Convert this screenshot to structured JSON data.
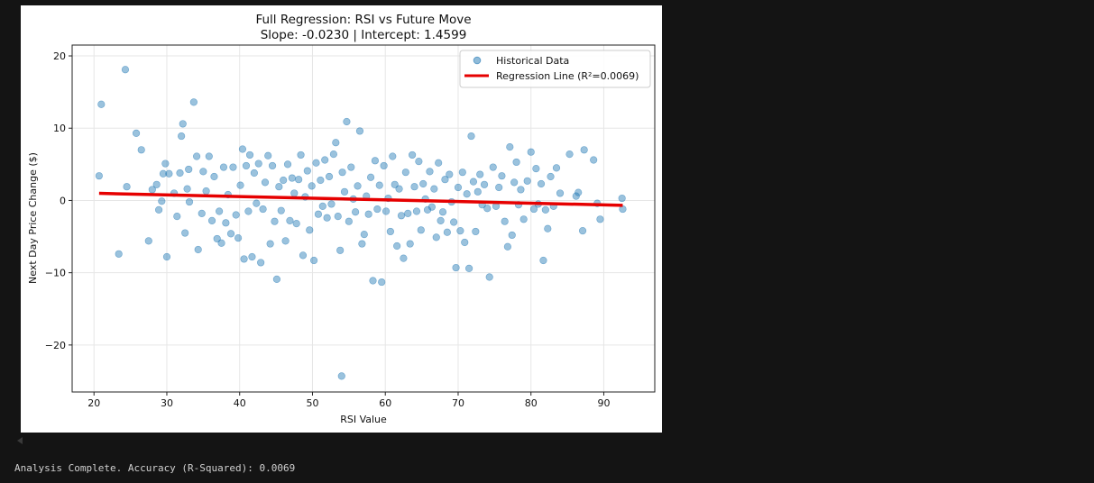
{
  "output": {
    "status_text": "Analysis Complete. Accuracy (R-Squared): 0.0069"
  },
  "chart_data": {
    "type": "scatter",
    "title": "Full Regression: RSI vs Future Move",
    "subtitle": "Slope: -0.0230 | Intercept: 1.4599",
    "xlabel": "RSI Value",
    "ylabel": "Next Day Price Change ($)",
    "xlim": [
      17,
      97
    ],
    "ylim": [
      -26.5,
      21.5
    ],
    "xticks": [
      20,
      30,
      40,
      50,
      60,
      70,
      80,
      90
    ],
    "yticks": [
      -20,
      -10,
      0,
      10,
      20
    ],
    "ytick_labels": [
      "−20",
      "−10",
      "0",
      "10",
      "20"
    ],
    "grid": true,
    "legend_position": "top-right",
    "colors": {
      "scatter": "#1f77b4",
      "regression": "#e60000"
    },
    "series": [
      {
        "name": "Historical Data",
        "kind": "scatter",
        "points": [
          [
            20.7,
            3.4
          ],
          [
            21.0,
            13.3
          ],
          [
            23.4,
            -7.4
          ],
          [
            24.3,
            18.1
          ],
          [
            24.5,
            1.9
          ],
          [
            25.8,
            9.3
          ],
          [
            26.5,
            7.0
          ],
          [
            27.5,
            -5.6
          ],
          [
            28.0,
            1.5
          ],
          [
            28.6,
            2.2
          ],
          [
            28.9,
            -1.3
          ],
          [
            29.3,
            -0.1
          ],
          [
            29.5,
            3.7
          ],
          [
            29.8,
            5.1
          ],
          [
            30.0,
            -7.8
          ],
          [
            30.3,
            3.7
          ],
          [
            31.0,
            1.0
          ],
          [
            31.4,
            -2.2
          ],
          [
            31.8,
            3.8
          ],
          [
            32.0,
            8.9
          ],
          [
            32.2,
            10.6
          ],
          [
            32.5,
            -4.5
          ],
          [
            32.8,
            1.6
          ],
          [
            33.0,
            4.3
          ],
          [
            33.1,
            -0.2
          ],
          [
            33.7,
            13.6
          ],
          [
            34.1,
            6.1
          ],
          [
            34.3,
            -6.8
          ],
          [
            34.8,
            -1.8
          ],
          [
            35.0,
            4.0
          ],
          [
            35.4,
            1.3
          ],
          [
            35.8,
            6.1
          ],
          [
            36.2,
            -2.8
          ],
          [
            36.5,
            3.3
          ],
          [
            36.9,
            -5.3
          ],
          [
            37.2,
            -1.5
          ],
          [
            37.5,
            -5.9
          ],
          [
            37.8,
            4.6
          ],
          [
            38.1,
            -3.1
          ],
          [
            38.4,
            0.8
          ],
          [
            38.8,
            -4.6
          ],
          [
            39.1,
            4.6
          ],
          [
            39.5,
            -2.0
          ],
          [
            39.8,
            -5.2
          ],
          [
            40.1,
            2.1
          ],
          [
            40.4,
            7.1
          ],
          [
            40.6,
            -8.1
          ],
          [
            40.9,
            4.8
          ],
          [
            41.2,
            -1.5
          ],
          [
            41.4,
            6.3
          ],
          [
            41.7,
            -7.8
          ],
          [
            42.0,
            3.8
          ],
          [
            42.3,
            -0.4
          ],
          [
            42.6,
            5.1
          ],
          [
            42.9,
            -8.6
          ],
          [
            43.2,
            -1.2
          ],
          [
            43.5,
            2.5
          ],
          [
            43.9,
            6.2
          ],
          [
            44.2,
            -6.0
          ],
          [
            44.5,
            4.8
          ],
          [
            44.8,
            -2.9
          ],
          [
            45.1,
            -10.9
          ],
          [
            45.4,
            1.9
          ],
          [
            45.7,
            -1.4
          ],
          [
            46.0,
            2.8
          ],
          [
            46.3,
            -5.6
          ],
          [
            46.6,
            5.0
          ],
          [
            46.9,
            -2.8
          ],
          [
            47.2,
            3.1
          ],
          [
            47.5,
            1.0
          ],
          [
            47.8,
            -3.2
          ],
          [
            48.1,
            2.9
          ],
          [
            48.4,
            6.3
          ],
          [
            48.7,
            -7.6
          ],
          [
            49.0,
            0.5
          ],
          [
            49.3,
            4.1
          ],
          [
            49.6,
            -4.1
          ],
          [
            49.9,
            2.0
          ],
          [
            50.2,
            -8.3
          ],
          [
            50.5,
            5.2
          ],
          [
            50.8,
            -1.9
          ],
          [
            51.1,
            2.8
          ],
          [
            51.4,
            -0.8
          ],
          [
            51.7,
            5.6
          ],
          [
            52.0,
            -2.4
          ],
          [
            52.3,
            3.3
          ],
          [
            52.6,
            -0.5
          ],
          [
            52.9,
            6.4
          ],
          [
            53.2,
            8.0
          ],
          [
            53.5,
            -2.2
          ],
          [
            53.8,
            -6.9
          ],
          [
            54.0,
            -24.3
          ],
          [
            54.1,
            3.9
          ],
          [
            54.4,
            1.2
          ],
          [
            54.7,
            10.9
          ],
          [
            55.0,
            -2.9
          ],
          [
            55.3,
            4.6
          ],
          [
            55.6,
            0.2
          ],
          [
            55.9,
            -1.6
          ],
          [
            56.2,
            2.0
          ],
          [
            56.5,
            9.6
          ],
          [
            56.8,
            -6.0
          ],
          [
            57.1,
            -4.7
          ],
          [
            57.4,
            0.6
          ],
          [
            57.7,
            -1.9
          ],
          [
            58.0,
            3.2
          ],
          [
            58.3,
            -11.1
          ],
          [
            58.6,
            5.5
          ],
          [
            58.9,
            -1.2
          ],
          [
            59.2,
            2.1
          ],
          [
            59.5,
            -11.3
          ],
          [
            59.8,
            4.8
          ],
          [
            60.1,
            -1.5
          ],
          [
            60.4,
            0.3
          ],
          [
            60.7,
            -4.3
          ],
          [
            61.0,
            6.1
          ],
          [
            61.3,
            2.2
          ],
          [
            61.6,
            -6.3
          ],
          [
            61.9,
            1.6
          ],
          [
            62.2,
            -2.1
          ],
          [
            62.5,
            -8.0
          ],
          [
            62.8,
            3.9
          ],
          [
            63.1,
            -1.8
          ],
          [
            63.4,
            -6.0
          ],
          [
            63.7,
            6.3
          ],
          [
            64.0,
            1.9
          ],
          [
            64.3,
            -1.5
          ],
          [
            64.6,
            5.4
          ],
          [
            64.9,
            -4.1
          ],
          [
            65.2,
            2.3
          ],
          [
            65.5,
            0.2
          ],
          [
            65.8,
            -1.3
          ],
          [
            66.1,
            4.0
          ],
          [
            66.4,
            -0.9
          ],
          [
            66.7,
            1.6
          ],
          [
            67.0,
            -5.1
          ],
          [
            67.3,
            5.2
          ],
          [
            67.6,
            -2.8
          ],
          [
            67.9,
            -1.6
          ],
          [
            68.2,
            2.9
          ],
          [
            68.5,
            -4.4
          ],
          [
            68.8,
            3.6
          ],
          [
            69.1,
            -0.2
          ],
          [
            69.4,
            -3.0
          ],
          [
            69.7,
            -9.3
          ],
          [
            70.0,
            1.8
          ],
          [
            70.3,
            -4.2
          ],
          [
            70.6,
            3.9
          ],
          [
            70.9,
            -5.8
          ],
          [
            71.2,
            0.9
          ],
          [
            71.5,
            -9.4
          ],
          [
            71.8,
            8.9
          ],
          [
            72.1,
            2.6
          ],
          [
            72.4,
            -4.3
          ],
          [
            72.7,
            1.2
          ],
          [
            73.0,
            3.6
          ],
          [
            73.3,
            -0.6
          ],
          [
            73.6,
            2.2
          ],
          [
            74.0,
            -1.1
          ],
          [
            74.3,
            -10.6
          ],
          [
            74.8,
            4.6
          ],
          [
            75.2,
            -0.8
          ],
          [
            75.6,
            1.8
          ],
          [
            76.0,
            3.4
          ],
          [
            76.4,
            -2.9
          ],
          [
            76.8,
            -6.4
          ],
          [
            77.1,
            7.4
          ],
          [
            77.4,
            -4.8
          ],
          [
            77.7,
            2.5
          ],
          [
            78.0,
            5.3
          ],
          [
            78.3,
            -0.6
          ],
          [
            78.6,
            1.5
          ],
          [
            79.0,
            -2.6
          ],
          [
            79.5,
            2.7
          ],
          [
            80.0,
            6.7
          ],
          [
            80.4,
            -1.2
          ],
          [
            80.7,
            4.4
          ],
          [
            81.0,
            -0.5
          ],
          [
            81.4,
            2.3
          ],
          [
            81.7,
            -8.3
          ],
          [
            82.0,
            -1.3
          ],
          [
            82.3,
            -3.9
          ],
          [
            82.7,
            3.3
          ],
          [
            83.1,
            -0.8
          ],
          [
            83.5,
            4.5
          ],
          [
            84.0,
            1.0
          ],
          [
            85.3,
            6.4
          ],
          [
            86.2,
            0.6
          ],
          [
            86.5,
            1.1
          ],
          [
            87.1,
            -4.2
          ],
          [
            87.3,
            7.0
          ],
          [
            88.6,
            5.6
          ],
          [
            89.1,
            -0.4
          ],
          [
            89.5,
            -2.6
          ],
          [
            92.5,
            0.3
          ],
          [
            92.6,
            -1.2
          ]
        ]
      },
      {
        "name": "Regression Line (R²=0.0069)",
        "kind": "line",
        "x": [
          20.7,
          92.6
        ],
        "y": [
          0.984,
          -0.67
        ]
      }
    ]
  }
}
